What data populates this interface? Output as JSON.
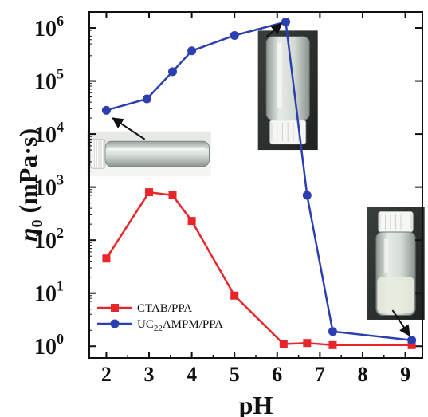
{
  "chart_data": {
    "type": "line",
    "title": "",
    "xlabel": "pH",
    "ylabel": "η0 (mPa·s)",
    "ylabel_main": "η",
    "ylabel_sub": "0",
    "ylabel_unit": " (mPa·s)",
    "xlim": [
      1.6,
      9.4
    ],
    "ylim": [
      0.6,
      2000000
    ],
    "yscale": "log",
    "xticks": [
      2,
      3,
      4,
      5,
      6,
      7,
      8,
      9
    ],
    "xtick_labels": [
      "2",
      "3",
      "4",
      "5",
      "6",
      "7",
      "8",
      "9"
    ],
    "yticks": [
      {
        "value": 1,
        "base": "10",
        "exp": "0"
      },
      {
        "value": 10,
        "base": "10",
        "exp": "1"
      },
      {
        "value": 100,
        "base": "10",
        "exp": "2"
      },
      {
        "value": 1000,
        "base": "10",
        "exp": "3"
      },
      {
        "value": 10000,
        "base": "10",
        "exp": "4"
      },
      {
        "value": 100000,
        "base": "10",
        "exp": "5"
      },
      {
        "value": 1000000,
        "base": "10",
        "exp": "6"
      }
    ],
    "grid": false,
    "legend_position": "bottom-left",
    "series": [
      {
        "name": "CTAB/PPA",
        "name_parts": [
          "CTAB/PPA"
        ],
        "color": "#e8262a",
        "marker": "square",
        "x": [
          2.0,
          3.0,
          3.55,
          4.0,
          5.0,
          6.15,
          6.7,
          7.3,
          9.15
        ],
        "y": [
          45,
          800,
          700,
          230,
          9,
          1.1,
          1.15,
          1.05,
          1.05
        ]
      },
      {
        "name": "UC22AMPM/PPA",
        "name_parts": [
          "UC",
          "22",
          "AMPM/PPA"
        ],
        "color": "#2b3fb1",
        "marker": "circle",
        "x": [
          2.0,
          2.95,
          3.55,
          4.0,
          5.0,
          6.2,
          6.7,
          7.3,
          9.15
        ],
        "y": [
          28000,
          46000,
          150000,
          370000,
          720000,
          1300000,
          700,
          1.9,
          1.3
        ]
      }
    ],
    "annotations": [
      {
        "kind": "photo",
        "name": "vial-photo-ph2",
        "x": [
          1.55,
          4.45
        ],
        "y_log": [
          3.2,
          4.05
        ]
      },
      {
        "kind": "photo",
        "name": "vial-photo-ph6",
        "x": [
          5.55,
          6.95
        ],
        "y_log": [
          3.7,
          5.95
        ]
      },
      {
        "kind": "photo",
        "name": "vial-photo-ph9",
        "x": [
          8.1,
          9.45
        ],
        "y_log": [
          0.5,
          2.62
        ]
      },
      {
        "kind": "arrow",
        "name": "arrow-ph2",
        "from": [
          2.9,
          3.9
        ],
        "to": [
          2.15,
          4.3
        ]
      },
      {
        "kind": "arrow",
        "name": "arrow-ph6",
        "from": [
          5.75,
          5.83
        ],
        "to": [
          6.1,
          6.08
        ]
      },
      {
        "kind": "arrow",
        "name": "arrow-ph9",
        "from": [
          8.7,
          0.68
        ],
        "to": [
          9.1,
          0.2
        ]
      }
    ]
  }
}
